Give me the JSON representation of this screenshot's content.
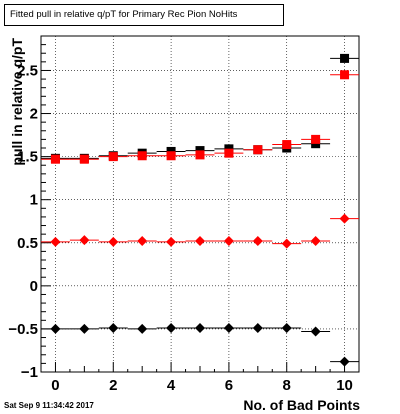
{
  "title": "Fitted pull in relative q/pT for Primary Rec Pion NoHits",
  "timestamp": "Sat Sep  9 11:34:42 2017",
  "chart_data": {
    "type": "scatter",
    "title": "Fitted pull in relative q/pT for Primary Rec Pion NoHits",
    "xlabel": "No. of Bad Points",
    "ylabel": "pull in relative q/pT",
    "xlim": [
      -0.5,
      10.5
    ],
    "ylim": [
      -1.0,
      2.9
    ],
    "grid": true,
    "xticks": [
      0,
      2,
      4,
      6,
      8,
      10
    ],
    "xtick_labels": [
      "0",
      "2",
      "4",
      "6",
      "8",
      "10"
    ],
    "yticks": [
      -1,
      -0.5,
      0,
      0.5,
      1,
      1.5,
      2,
      2.5
    ],
    "ytick_labels": [
      "−1",
      "−0.5",
      "0",
      "0.5",
      "1",
      "1.5",
      "2",
      "2.5"
    ],
    "series": [
      {
        "marker": "square",
        "color": "#000000",
        "x": [
          0,
          1,
          2,
          3,
          4,
          5,
          6,
          7,
          8,
          9,
          10
        ],
        "y": [
          1.48,
          1.48,
          1.51,
          1.54,
          1.56,
          1.57,
          1.59,
          1.58,
          1.6,
          1.65,
          2.64
        ]
      },
      {
        "marker": "square",
        "color": "#ff0000",
        "x": [
          0,
          1,
          2,
          3,
          4,
          5,
          6,
          7,
          8,
          9,
          10
        ],
        "y": [
          1.47,
          1.47,
          1.5,
          1.51,
          1.51,
          1.52,
          1.54,
          1.58,
          1.64,
          1.7,
          2.45
        ]
      },
      {
        "marker": "diamond",
        "color": "#000000",
        "x": [
          0,
          1,
          2,
          3,
          4,
          5,
          6,
          7,
          8,
          9,
          10
        ],
        "y": [
          -0.5,
          -0.5,
          -0.49,
          -0.5,
          -0.49,
          -0.49,
          -0.49,
          -0.49,
          -0.49,
          -0.53,
          -0.88
        ]
      },
      {
        "marker": "diamond",
        "color": "#ff0000",
        "x": [
          0,
          1,
          2,
          3,
          4,
          5,
          6,
          7,
          8,
          9,
          10
        ],
        "y": [
          0.51,
          0.53,
          0.51,
          0.52,
          0.51,
          0.52,
          0.52,
          0.52,
          0.49,
          0.52,
          0.78
        ]
      }
    ]
  }
}
